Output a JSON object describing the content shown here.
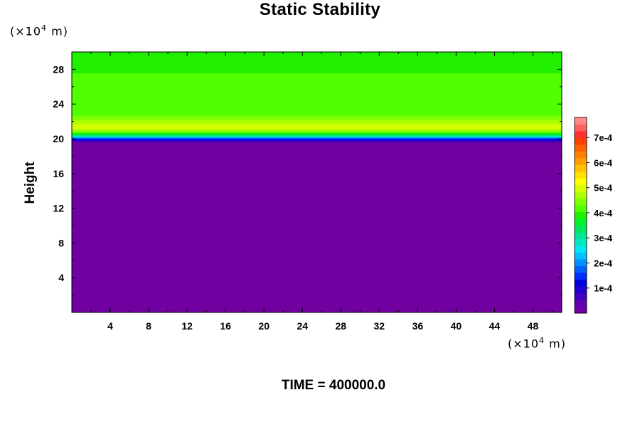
{
  "chart_data": {
    "type": "heatmap",
    "title": "Static Stability",
    "ylabel": "Height",
    "xlabel": "",
    "y_unit": "(×10⁴ m)",
    "x_unit": "(×10⁴ m)",
    "footer": "TIME = 400000.0",
    "xlim": [
      0,
      51
    ],
    "ylim": [
      0,
      30
    ],
    "x_ticks": [
      "4",
      "8",
      "12",
      "16",
      "20",
      "24",
      "28",
      "32",
      "36",
      "40",
      "44",
      "48"
    ],
    "y_ticks": [
      "4",
      "8",
      "12",
      "16",
      "20",
      "24",
      "28"
    ],
    "colorbar": {
      "min": 0,
      "max": 0.00078,
      "tick_values": [
        0.0001,
        0.0002,
        0.0003,
        0.0004,
        0.0005,
        0.0006,
        0.0007
      ],
      "tick_labels": [
        "1e-4",
        "2e-4",
        "3e-4",
        "4e-4",
        "5e-4",
        "6e-4",
        "7e-4"
      ],
      "colors": [
        "#7000a0",
        "#6000b0",
        "#4000c0",
        "#2000d0",
        "#0000e0",
        "#0030ff",
        "#0060ff",
        "#0090ff",
        "#00c0ff",
        "#00e8f0",
        "#00e8c0",
        "#00e890",
        "#00e860",
        "#00f030",
        "#20f000",
        "#50ff00",
        "#80ff00",
        "#b0ff00",
        "#d8ff00",
        "#ffff00",
        "#ffe000",
        "#ffc000",
        "#ffa000",
        "#ff8000",
        "#ff6000",
        "#ff4000",
        "#ff3030",
        "#ff6060",
        "#ff8888"
      ]
    },
    "vertical_profile": [
      {
        "height": 0,
        "value": 0.0
      },
      {
        "height": 11.2,
        "value": 0.0
      },
      {
        "height": 11.4,
        "value": 3e-05
      },
      {
        "height": 11.6,
        "value": 0.0
      },
      {
        "height": 19.5,
        "value": 0.0
      },
      {
        "height": 19.8,
        "value": 7e-05
      },
      {
        "height": 20.1,
        "value": 0.00017
      },
      {
        "height": 20.4,
        "value": 0.00033
      },
      {
        "height": 20.8,
        "value": 0.00044
      },
      {
        "height": 21.4,
        "value": 0.0005
      },
      {
        "height": 22.2,
        "value": 0.00046
      },
      {
        "height": 23.0,
        "value": 0.00041
      },
      {
        "height": 30,
        "value": 0.0004
      }
    ]
  }
}
